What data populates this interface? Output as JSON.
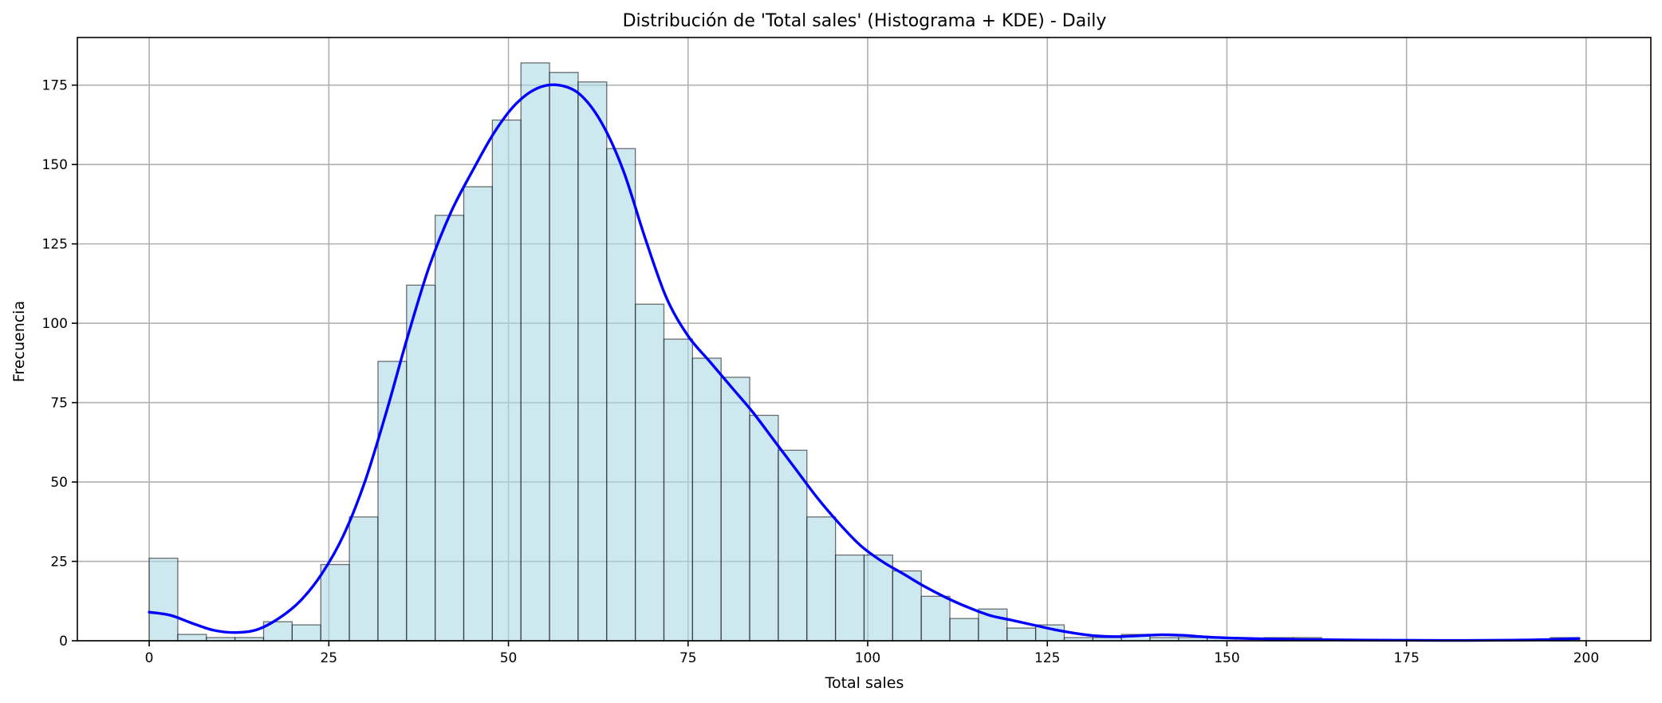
{
  "chart_data": {
    "type": "bar",
    "title": "Distribución de 'Total sales' (Histograma + KDE) - Daily",
    "xlabel": "Total sales",
    "ylabel": "Frecuencia",
    "xlim": [
      -10,
      209
    ],
    "ylim": [
      0,
      190
    ],
    "x_ticks": [
      0,
      25,
      50,
      75,
      100,
      125,
      150,
      175,
      200
    ],
    "y_ticks": [
      0,
      25,
      50,
      75,
      100,
      125,
      150,
      175
    ],
    "grid": true,
    "bin_start": 0,
    "bin_width": 3.98,
    "values": [
      26,
      2,
      1,
      1,
      6,
      5,
      24,
      39,
      88,
      112,
      134,
      143,
      164,
      182,
      179,
      176,
      155,
      106,
      95,
      89,
      83,
      71,
      60,
      39,
      27,
      27,
      22,
      14,
      7,
      10,
      4,
      5,
      1,
      1,
      2,
      1,
      1,
      1,
      0,
      1,
      1,
      0,
      0,
      0,
      0,
      0,
      0,
      0,
      0,
      1
    ],
    "bar_color": "#add8e6",
    "edge_color": "#000000",
    "kde": {
      "name": "KDE",
      "color": "#0000ff",
      "points": [
        [
          0,
          9
        ],
        [
          3,
          8
        ],
        [
          6,
          5.5
        ],
        [
          9,
          3.3
        ],
        [
          12,
          2.6
        ],
        [
          15,
          3.5
        ],
        [
          18,
          7
        ],
        [
          21,
          12.5
        ],
        [
          24,
          21
        ],
        [
          27,
          33
        ],
        [
          30,
          50
        ],
        [
          33,
          72
        ],
        [
          36,
          96
        ],
        [
          39,
          118
        ],
        [
          42,
          135
        ],
        [
          45,
          148
        ],
        [
          48,
          160
        ],
        [
          51,
          169
        ],
        [
          54,
          174
        ],
        [
          57,
          175
        ],
        [
          60,
          172
        ],
        [
          63,
          163
        ],
        [
          66,
          148
        ],
        [
          69,
          127
        ],
        [
          72,
          108
        ],
        [
          75,
          96
        ],
        [
          78,
          88
        ],
        [
          81,
          80
        ],
        [
          84,
          72
        ],
        [
          87,
          63
        ],
        [
          90,
          54
        ],
        [
          93,
          45
        ],
        [
          96,
          37
        ],
        [
          99,
          30
        ],
        [
          102,
          25
        ],
        [
          105,
          21
        ],
        [
          108,
          17
        ],
        [
          111,
          13.5
        ],
        [
          114,
          10.5
        ],
        [
          117,
          8
        ],
        [
          120,
          6.5
        ],
        [
          123,
          5
        ],
        [
          126,
          3.5
        ],
        [
          129,
          2.3
        ],
        [
          132,
          1.5
        ],
        [
          135,
          1.3
        ],
        [
          138,
          1.6
        ],
        [
          141,
          1.9
        ],
        [
          144,
          1.7
        ],
        [
          147,
          1.2
        ],
        [
          150,
          0.9
        ],
        [
          155,
          0.6
        ],
        [
          160,
          0.4
        ],
        [
          170,
          0.2
        ],
        [
          180,
          0.1
        ],
        [
          190,
          0.2
        ],
        [
          195,
          0.4
        ],
        [
          199,
          0.7
        ]
      ]
    }
  }
}
